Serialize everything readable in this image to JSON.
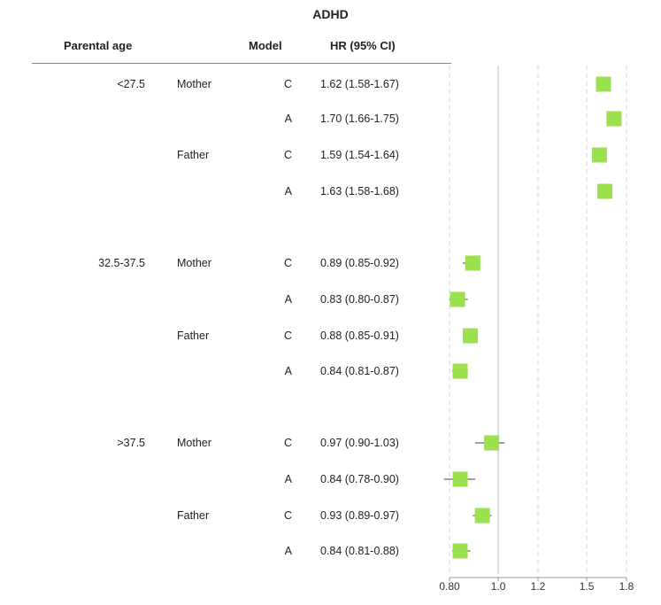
{
  "chart_data": {
    "type": "forest",
    "title": "ADHD",
    "headers": {
      "parental_age": "Parental age",
      "model": "Model",
      "hr": "HR (95% CI)"
    },
    "x_ticks": [
      "0.80",
      "1.0",
      "1.2",
      "1.5",
      "1.8"
    ],
    "x_tick_values": [
      0.8,
      1.0,
      1.2,
      1.5,
      1.8
    ],
    "xlim": [
      0.8,
      1.8
    ],
    "reference_line": 1.0,
    "marker_color": "#9be04d",
    "rows": [
      {
        "age": "<27.5",
        "parent": "Mother",
        "model": "C",
        "hr_text": "1.62 (1.58-1.67)",
        "hr": 1.62,
        "lo": 1.58,
        "hi": 1.67
      },
      {
        "age": "",
        "parent": "",
        "model": "A",
        "hr_text": "1.70 (1.66-1.75)",
        "hr": 1.7,
        "lo": 1.66,
        "hi": 1.75
      },
      {
        "age": "",
        "parent": "Father",
        "model": "C",
        "hr_text": "1.59 (1.54-1.64)",
        "hr": 1.59,
        "lo": 1.54,
        "hi": 1.64
      },
      {
        "age": "",
        "parent": "",
        "model": "A",
        "hr_text": "1.63 (1.58-1.68)",
        "hr": 1.63,
        "lo": 1.58,
        "hi": 1.68
      },
      {
        "age": "32.5-37.5",
        "parent": "Mother",
        "model": "C",
        "hr_text": "0.89 (0.85-0.92)",
        "hr": 0.89,
        "lo": 0.85,
        "hi": 0.92
      },
      {
        "age": "",
        "parent": "",
        "model": "A",
        "hr_text": "0.83 (0.80-0.87)",
        "hr": 0.83,
        "lo": 0.8,
        "hi": 0.87
      },
      {
        "age": "",
        "parent": "Father",
        "model": "C",
        "hr_text": "0.88 (0.85-0.91)",
        "hr": 0.88,
        "lo": 0.85,
        "hi": 0.91
      },
      {
        "age": "",
        "parent": "",
        "model": "A",
        "hr_text": "0.84 (0.81-0.87)",
        "hr": 0.84,
        "lo": 0.81,
        "hi": 0.87
      },
      {
        "age": ">37.5",
        "parent": "Mother",
        "model": "C",
        "hr_text": "0.97 (0.90-1.03)",
        "hr": 0.97,
        "lo": 0.9,
        "hi": 1.03
      },
      {
        "age": "",
        "parent": "",
        "model": "A",
        "hr_text": "0.84 (0.78-0.90)",
        "hr": 0.84,
        "lo": 0.78,
        "hi": 0.9
      },
      {
        "age": "",
        "parent": "Father",
        "model": "C",
        "hr_text": "0.93 (0.89-0.97)",
        "hr": 0.93,
        "lo": 0.89,
        "hi": 0.97
      },
      {
        "age": "",
        "parent": "",
        "model": "A",
        "hr_text": "0.84 (0.81-0.88)",
        "hr": 0.84,
        "lo": 0.81,
        "hi": 0.88
      }
    ]
  }
}
